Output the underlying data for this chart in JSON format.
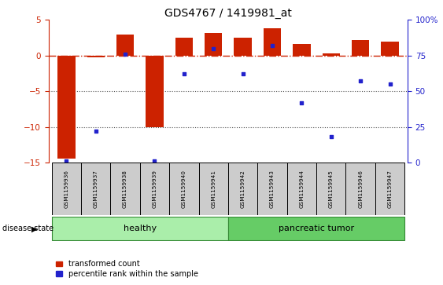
{
  "title": "GDS4767 / 1419981_at",
  "samples": [
    "GSM1159936",
    "GSM1159937",
    "GSM1159938",
    "GSM1159939",
    "GSM1159940",
    "GSM1159941",
    "GSM1159942",
    "GSM1159943",
    "GSM1159944",
    "GSM1159945",
    "GSM1159946",
    "GSM1159947"
  ],
  "red_bars": [
    -14.5,
    -0.2,
    3.0,
    -10.0,
    2.5,
    3.2,
    2.5,
    3.8,
    1.6,
    0.3,
    2.2,
    2.0
  ],
  "blue_dots_pct": [
    1,
    22,
    76,
    1,
    62,
    80,
    62,
    82,
    42,
    18,
    57,
    55
  ],
  "healthy_count": 6,
  "tumor_count": 6,
  "ylim_left": [
    -15,
    5
  ],
  "ylim_right": [
    0,
    100
  ],
  "yticks_left": [
    5,
    0,
    -5,
    -10,
    -15
  ],
  "yticks_right": [
    100,
    75,
    50,
    25,
    0
  ],
  "bar_color": "#cc2200",
  "dot_color": "#2222cc",
  "healthy_color": "#aaeeaa",
  "tumor_color": "#66cc66",
  "label_box_color": "#cccccc",
  "hline_color": "#cc2200",
  "dotted_color": "#555555",
  "bg_color": "#ffffff",
  "spine_color": "#888888"
}
